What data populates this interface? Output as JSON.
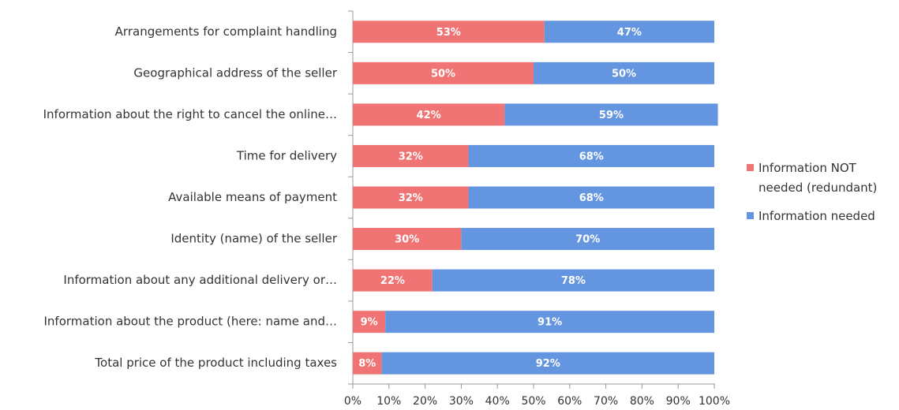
{
  "chart_data": {
    "type": "stacked-barh",
    "categories": [
      "Arrangements for complaint handling",
      "Geographical address of the seller",
      "Information about the right to cancel the online…",
      "Time for delivery",
      "Available means of payment",
      "Identity (name) of the seller",
      "Information about any additional delivery or…",
      "Information about the product (here: name and…",
      "Total price of the product including taxes"
    ],
    "series": [
      {
        "name": "Information NOT needed (redundant)",
        "color": "#f07474",
        "values": [
          53,
          50,
          42,
          32,
          32,
          30,
          22,
          9,
          8
        ],
        "value_labels": [
          "53%",
          "50%",
          "42%",
          "32%",
          "32%",
          "30%",
          "22%",
          "9%",
          "8%"
        ]
      },
      {
        "name": "Information needed",
        "color": "#6495e0",
        "values": [
          47,
          50,
          59,
          68,
          68,
          70,
          78,
          91,
          92
        ],
        "value_labels": [
          "47%",
          "50%",
          "59%",
          "68%",
          "68%",
          "70%",
          "78%",
          "91%",
          "92%"
        ]
      }
    ],
    "xlim": [
      0,
      100
    ],
    "xticks": [
      {
        "value": 0,
        "label": "0%"
      },
      {
        "value": 10,
        "label": "10%"
      },
      {
        "value": 20,
        "label": "20%"
      },
      {
        "value": 30,
        "label": "30%"
      },
      {
        "value": 40,
        "label": "40%"
      },
      {
        "value": 50,
        "label": "50%"
      },
      {
        "value": 60,
        "label": "60%"
      },
      {
        "value": 70,
        "label": "70%"
      },
      {
        "value": 80,
        "label": "80%"
      },
      {
        "value": 90,
        "label": "90%"
      },
      {
        "value": 100,
        "label": "100%"
      }
    ],
    "legend": "right"
  }
}
